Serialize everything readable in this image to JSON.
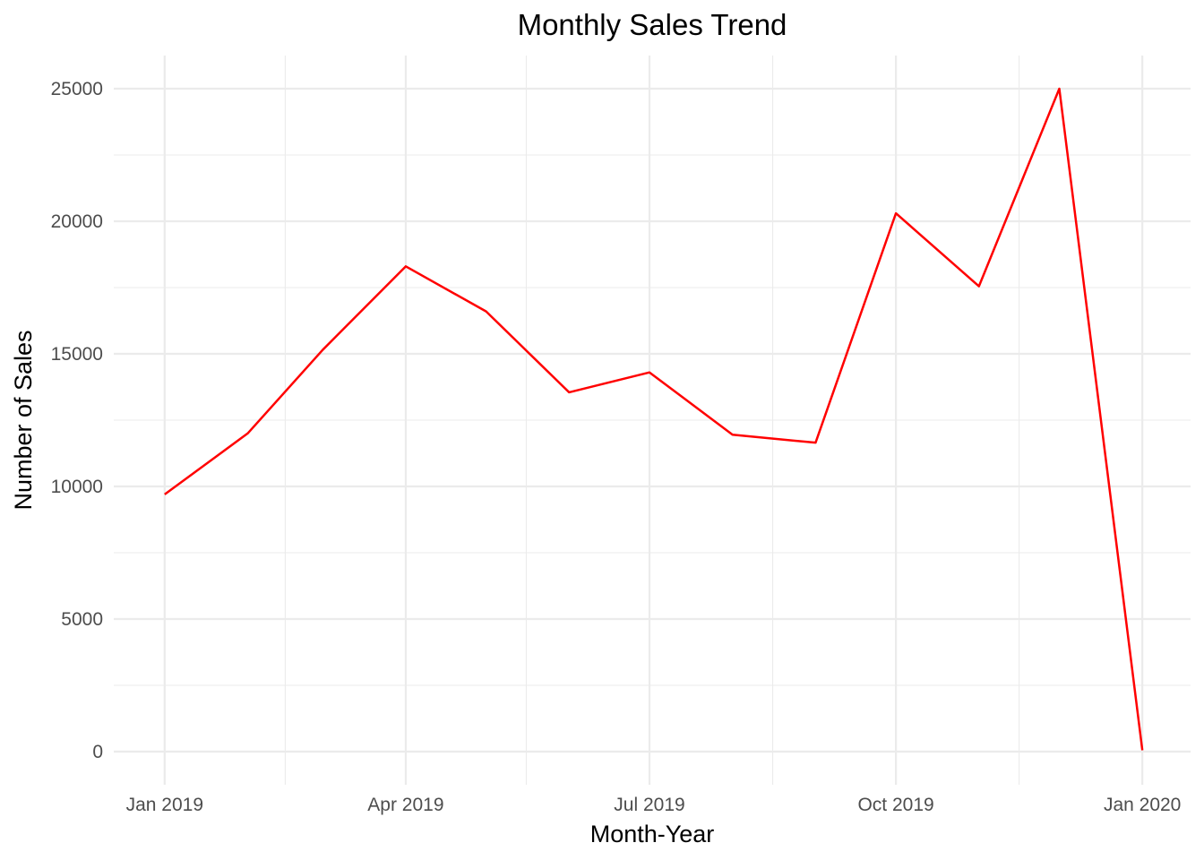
{
  "chart_data": {
    "type": "line",
    "title": "Monthly Sales Trend",
    "xlabel": "Month-Year",
    "ylabel": "Number of Sales",
    "x": [
      "2019-01",
      "2019-02",
      "2019-03",
      "2019-04",
      "2019-05",
      "2019-06",
      "2019-07",
      "2019-08",
      "2019-09",
      "2019-10",
      "2019-11",
      "2019-12",
      "2020-01"
    ],
    "series": [
      {
        "values": [
          9700,
          12000,
          15150,
          18300,
          16600,
          13550,
          14300,
          11950,
          11650,
          20300,
          17550,
          25000,
          50
        ],
        "color": "#ff0000"
      }
    ],
    "xlim": [
      "2018-12-13",
      "2020-01-19"
    ],
    "ylim": [
      -1250,
      26250
    ],
    "x_ticks": [
      {
        "date": "2019-01-01",
        "label": "Jan 2019"
      },
      {
        "date": "2019-04-01",
        "label": "Apr 2019"
      },
      {
        "date": "2019-07-01",
        "label": "Jul 2019"
      },
      {
        "date": "2019-10-01",
        "label": "Oct 2019"
      },
      {
        "date": "2020-01-01",
        "label": "Jan 2020"
      }
    ],
    "x_minor_ticks": [
      "2019-02-15",
      "2019-05-16",
      "2019-08-16",
      "2019-11-16"
    ],
    "y_ticks": [
      {
        "value": 0,
        "label": "0"
      },
      {
        "value": 5000,
        "label": "5000"
      },
      {
        "value": 10000,
        "label": "10000"
      },
      {
        "value": 15000,
        "label": "15000"
      },
      {
        "value": 20000,
        "label": "20000"
      },
      {
        "value": 25000,
        "label": "25000"
      }
    ],
    "y_minor_ticks": [
      2500,
      7500,
      12500,
      17500,
      22500
    ],
    "grid": true,
    "legend": "none"
  }
}
